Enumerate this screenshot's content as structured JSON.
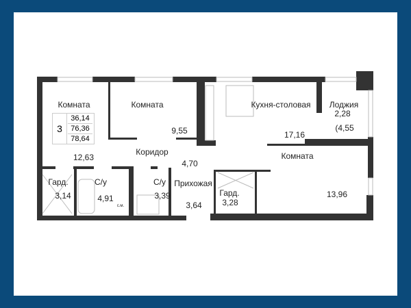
{
  "colors": {
    "frame": "#0b4a7a",
    "wall": "#333333",
    "background": "#ffffff"
  },
  "apartment": {
    "rooms_count": "3",
    "living_area": "36,14",
    "total_area": "76,36",
    "total_with_loggia": "78,64"
  },
  "rooms": [
    {
      "name": "Комната",
      "area": "12,63"
    },
    {
      "name": "Комната",
      "area": "9,55"
    },
    {
      "name": "Кухня-столовая",
      "area": "17,16"
    },
    {
      "name": "Лоджия",
      "area": "2,28",
      "area_full": "(4,55"
    },
    {
      "name": "Коридор",
      "area": "4,70"
    },
    {
      "name": "Комната",
      "area": "13,96"
    },
    {
      "name": "Гард.",
      "area": "3,14"
    },
    {
      "name": "С/у",
      "area": "4,91"
    },
    {
      "name": "С/у",
      "area": "3,39"
    },
    {
      "name": "Прихожая",
      "area": "3,64"
    },
    {
      "name": "Гард.",
      "area": "3,28"
    }
  ],
  "appliance_label": "с.м."
}
